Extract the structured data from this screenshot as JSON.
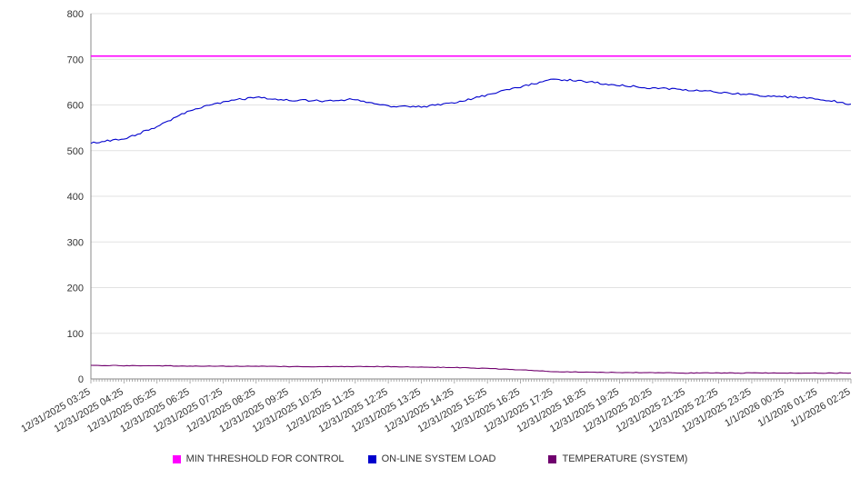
{
  "chart_data": {
    "type": "line",
    "title": "",
    "xlabel": "",
    "ylabel": "",
    "ylim": [
      0,
      800
    ],
    "y_ticks": [
      0,
      100,
      200,
      300,
      400,
      500,
      600,
      700,
      800
    ],
    "grid": true,
    "legend_position": "bottom",
    "x_labels": [
      "12/31/2025 03:25",
      "12/31/2025 04:25",
      "12/31/2025 05:25",
      "12/31/2025 06:25",
      "12/31/2025 07:25",
      "12/31/2025 08:25",
      "12/31/2025 09:25",
      "12/31/2025 10:25",
      "12/31/2025 11:25",
      "12/31/2025 12:25",
      "12/31/2025 13:25",
      "12/31/2025 14:25",
      "12/31/2025 15:25",
      "12/31/2025 16:25",
      "12/31/2025 17:25",
      "12/31/2025 18:25",
      "12/31/2025 19:25",
      "12/31/2025 20:25",
      "12/31/2025 21:25",
      "12/31/2025 22:25",
      "12/31/2025 23:25",
      "1/1/2026 00:25",
      "1/1/2026 01:25",
      "1/1/2026 02:25"
    ],
    "series": [
      {
        "name": "MIN THRESHOLD FOR CONTROL",
        "color": "#ff00ff",
        "values": [
          707,
          707,
          707,
          707,
          707,
          707,
          707,
          707,
          707,
          707,
          707,
          707,
          707,
          707,
          707,
          707,
          707,
          707,
          707,
          707,
          707,
          707,
          707,
          707
        ]
      },
      {
        "name": "ON-LINE SYSTEM LOAD",
        "color": "#0000cd",
        "values": [
          517,
          526,
          552,
          588,
          607,
          617,
          611,
          609,
          612,
          598,
          596,
          604,
          622,
          640,
          657,
          651,
          643,
          637,
          633,
          628,
          622,
          618,
          614,
          602
        ]
      },
      {
        "name": "TEMPERATURE (SYSTEM)",
        "color": "#70006e",
        "values": [
          30,
          29,
          29,
          28,
          28,
          28,
          27,
          27,
          27,
          27,
          26,
          25,
          23,
          20,
          16,
          15,
          14,
          14,
          13,
          13,
          13,
          13,
          13,
          13
        ]
      }
    ]
  }
}
